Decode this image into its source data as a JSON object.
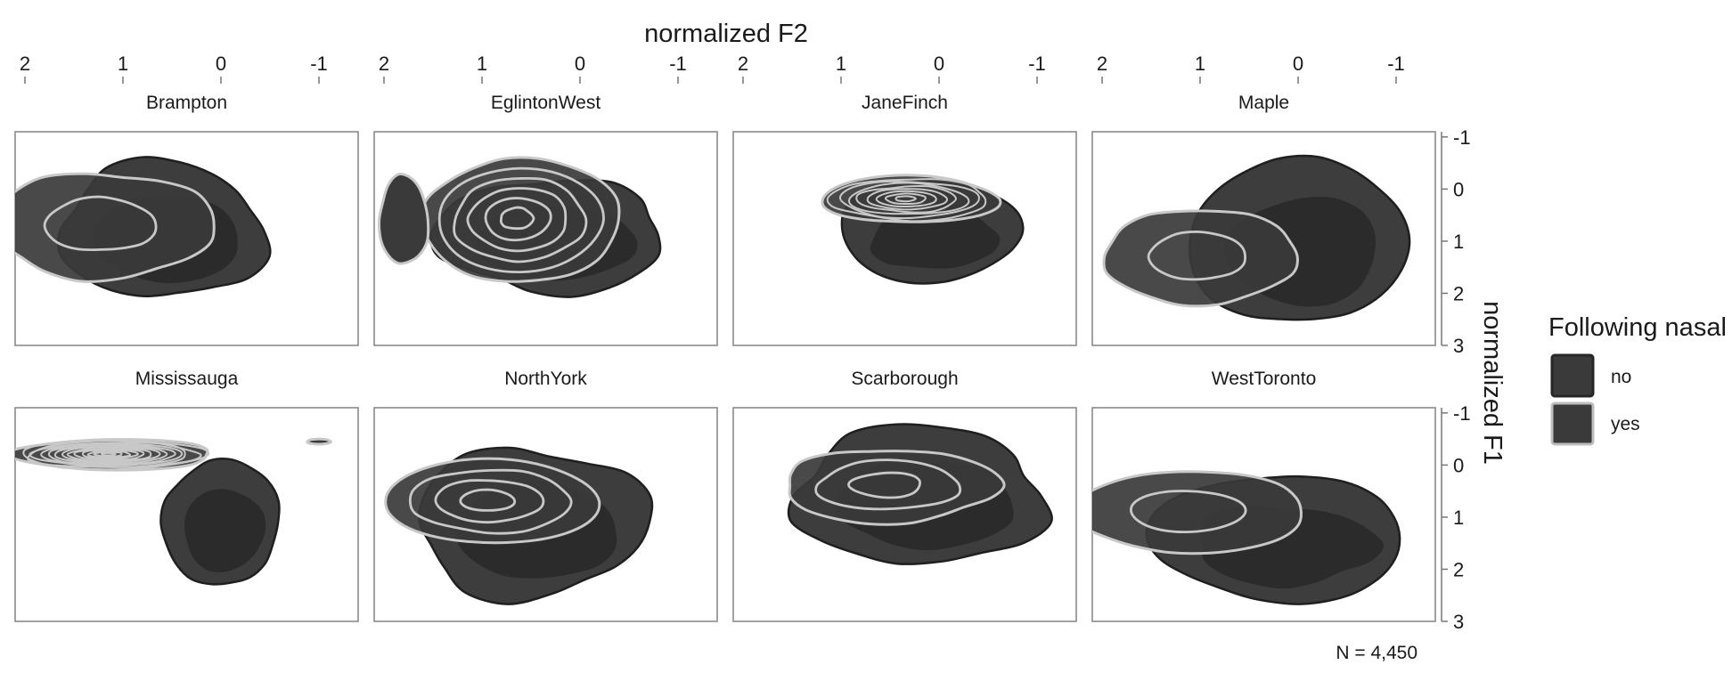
{
  "chart_data": {
    "type": "density-contour",
    "x_axis": {
      "title": "normalized F2",
      "position": "top",
      "reversed": true,
      "ticks": [
        2,
        1,
        0,
        -1
      ],
      "tick_labels": [
        "2",
        "1",
        "0",
        "-1"
      ],
      "range": [
        2.1,
        -1.4
      ]
    },
    "y_axis": {
      "title": "normalized F1",
      "position": "right",
      "reversed": true,
      "ticks": [
        -1,
        0,
        1,
        2,
        3
      ],
      "tick_labels": [
        "-1",
        "0",
        "1",
        "2",
        "3"
      ],
      "range": [
        -1.1,
        3.0
      ]
    },
    "legend": {
      "title": "Following nasal",
      "placement": "right",
      "entries": [
        {
          "label": "no",
          "fill": "#3a3a3a",
          "outline": "#262626"
        },
        {
          "label": "yes",
          "fill": "#3a3a3a",
          "outline": "#bdbdbd"
        }
      ]
    },
    "annotation": "N = 4,450",
    "colors": {
      "no_fill": "#3d3d3d",
      "no_inner": "#2b2b2b",
      "no_outline": "#1f1f1f",
      "yes_fill": "#3a3a3a",
      "yes_outline": "#c8c8c8",
      "panel_border": "#8a8a8a"
    },
    "panels": [
      {
        "name": "Brampton",
        "no": {
          "center": [
            0.6,
            0.8
          ],
          "rx": 1.05,
          "ry": 1.3,
          "levels": 2
        },
        "yes": {
          "center": [
            1.2,
            0.7
          ],
          "rx": 1.15,
          "ry": 1.0,
          "levels": 2
        }
      },
      {
        "name": "EglintonWest",
        "no": {
          "center": [
            0.3,
            0.9
          ],
          "rx": 1.15,
          "ry": 1.1,
          "levels": 2
        },
        "yes": {
          "center": [
            0.6,
            0.6
          ],
          "rx": 1.0,
          "ry": 1.2,
          "levels": 6
        },
        "yes_extra": {
          "center": [
            1.8,
            0.6
          ],
          "rx": 0.25,
          "ry": 0.85
        }
      },
      {
        "name": "JaneFinch",
        "no": {
          "center": [
            0.1,
            0.8
          ],
          "rx": 0.9,
          "ry": 1.0,
          "levels": 2
        },
        "yes": {
          "center": [
            0.3,
            0.2
          ],
          "rx": 0.9,
          "ry": 0.45,
          "levels": 9
        }
      },
      {
        "name": "Maple",
        "no": {
          "center": [
            0.0,
            1.0
          ],
          "rx": 1.1,
          "ry": 1.6,
          "levels": 2
        },
        "yes": {
          "center": [
            1.0,
            1.3
          ],
          "rx": 1.0,
          "ry": 0.9,
          "levels": 2
        }
      },
      {
        "name": "Mississauga",
        "no": {
          "center": [
            0.0,
            1.1
          ],
          "rx": 0.6,
          "ry": 1.2,
          "levels": 2
        },
        "yes": {
          "center": [
            1.1,
            -0.2
          ],
          "rx": 1.0,
          "ry": 0.3,
          "levels": 14
        },
        "yes_extra": {
          "center": [
            -1.0,
            -0.45
          ],
          "rx": 0.12,
          "ry": 0.05
        }
      },
      {
        "name": "NorthYork",
        "no": {
          "center": [
            0.5,
            1.1
          ],
          "rx": 1.2,
          "ry": 1.4,
          "levels": 2
        },
        "yes": {
          "center": [
            0.9,
            0.7
          ],
          "rx": 1.1,
          "ry": 0.8,
          "levels": 4
        }
      },
      {
        "name": "Scarborough",
        "no": {
          "center": [
            0.2,
            0.6
          ],
          "rx": 1.3,
          "ry": 1.3,
          "levels": 2
        },
        "yes": {
          "center": [
            0.5,
            0.4
          ],
          "rx": 1.1,
          "ry": 0.7,
          "levels": 3
        }
      },
      {
        "name": "WestToronto",
        "no": {
          "center": [
            0.2,
            1.4
          ],
          "rx": 1.3,
          "ry": 1.2,
          "levels": 2
        },
        "yes": {
          "center": [
            1.1,
            0.9
          ],
          "rx": 1.15,
          "ry": 0.8,
          "levels": 2
        }
      }
    ]
  }
}
